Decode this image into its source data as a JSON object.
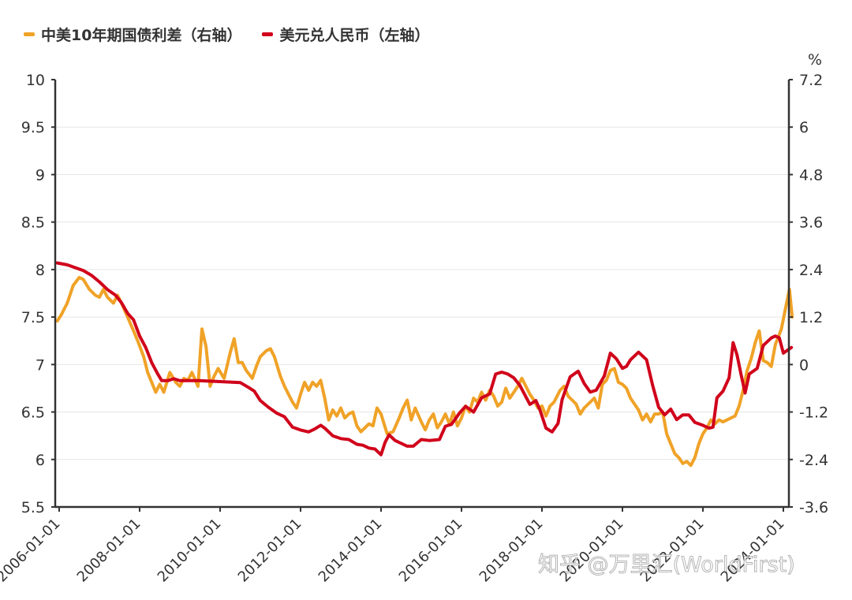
{
  "legend": [
    {
      "label": "中美10年期国债利差（右轴）",
      "color": "#F0A227"
    },
    {
      "label": "美元兑人民币（左轴）",
      "color": "#D0021B"
    }
  ],
  "watermark": "知乎 @万里汇(WorldFirst)",
  "chart_data": {
    "type": "line",
    "title": "",
    "xlabel": "",
    "ylabel_left": "",
    "ylabel_right": "%",
    "x_ticks": [
      "2006-01-01",
      "2008-01-01",
      "2010-01-01",
      "2012-01-01",
      "2014-01-01",
      "2016-01-01",
      "2018-01-01",
      "2020-01-01",
      "2022-01-01",
      "2024-01-01"
    ],
    "y_left_ticks": [
      "10",
      "9.5",
      "9",
      "8.5",
      "8",
      "7.5",
      "7",
      "6.5",
      "6",
      "5.5"
    ],
    "y_left_range": [
      5.5,
      10
    ],
    "y_right_ticks": [
      "7.2",
      "6",
      "4.8",
      "3.6",
      "2.4",
      "1.2",
      "0",
      "-1.2",
      "-2.4",
      "-3.6"
    ],
    "y_right_range": [
      -3.6,
      7.2
    ],
    "x_range": [
      2005.9,
      2024.15
    ],
    "grid": true,
    "legend_position": "top-left",
    "series": [
      {
        "name": "中美10年期国债利差（右轴）",
        "axis": "right",
        "color": "#F0A227",
        "points": [
          [
            2005.95,
            1.1
          ],
          [
            2006.05,
            1.25
          ],
          [
            2006.2,
            1.55
          ],
          [
            2006.35,
            2.0
          ],
          [
            2006.5,
            2.2
          ],
          [
            2006.6,
            2.15
          ],
          [
            2006.75,
            1.9
          ],
          [
            2006.9,
            1.75
          ],
          [
            2007.0,
            1.7
          ],
          [
            2007.1,
            1.9
          ],
          [
            2007.2,
            1.7
          ],
          [
            2007.35,
            1.55
          ],
          [
            2007.45,
            1.75
          ],
          [
            2007.55,
            1.55
          ],
          [
            2007.7,
            1.2
          ],
          [
            2007.85,
            0.85
          ],
          [
            2007.95,
            0.6
          ],
          [
            2008.1,
            0.2
          ],
          [
            2008.2,
            -0.2
          ],
          [
            2008.3,
            -0.45
          ],
          [
            2008.4,
            -0.7
          ],
          [
            2008.5,
            -0.5
          ],
          [
            2008.6,
            -0.7
          ],
          [
            2008.75,
            -0.2
          ],
          [
            2008.9,
            -0.45
          ],
          [
            2009.0,
            -0.55
          ],
          [
            2009.1,
            -0.35
          ],
          [
            2009.2,
            -0.4
          ],
          [
            2009.3,
            -0.2
          ],
          [
            2009.45,
            -0.55
          ],
          [
            2009.55,
            0.9
          ],
          [
            2009.65,
            0.45
          ],
          [
            2009.75,
            -0.55
          ],
          [
            2009.85,
            -0.3
          ],
          [
            2009.95,
            -0.1
          ],
          [
            2010.1,
            -0.35
          ],
          [
            2010.25,
            0.3
          ],
          [
            2010.35,
            0.65
          ],
          [
            2010.45,
            0.05
          ],
          [
            2010.55,
            0.05
          ],
          [
            2010.65,
            -0.15
          ],
          [
            2010.8,
            -0.35
          ],
          [
            2010.9,
            -0.05
          ],
          [
            2011.0,
            0.2
          ],
          [
            2011.15,
            0.35
          ],
          [
            2011.25,
            0.4
          ],
          [
            2011.35,
            0.2
          ],
          [
            2011.5,
            -0.3
          ],
          [
            2011.6,
            -0.55
          ],
          [
            2011.7,
            -0.75
          ],
          [
            2011.8,
            -0.95
          ],
          [
            2011.9,
            -1.1
          ],
          [
            2012.0,
            -0.75
          ],
          [
            2012.1,
            -0.45
          ],
          [
            2012.2,
            -0.65
          ],
          [
            2012.3,
            -0.45
          ],
          [
            2012.4,
            -0.55
          ],
          [
            2012.5,
            -0.4
          ],
          [
            2012.6,
            -0.85
          ],
          [
            2012.7,
            -1.4
          ],
          [
            2012.8,
            -1.15
          ],
          [
            2012.9,
            -1.3
          ],
          [
            2013.0,
            -1.1
          ],
          [
            2013.1,
            -1.35
          ],
          [
            2013.2,
            -1.25
          ],
          [
            2013.3,
            -1.2
          ],
          [
            2013.4,
            -1.55
          ],
          [
            2013.5,
            -1.7
          ],
          [
            2013.6,
            -1.6
          ],
          [
            2013.7,
            -1.5
          ],
          [
            2013.8,
            -1.55
          ],
          [
            2013.9,
            -1.1
          ],
          [
            2014.0,
            -1.25
          ],
          [
            2014.15,
            -1.75
          ],
          [
            2014.3,
            -1.7
          ],
          [
            2014.45,
            -1.35
          ],
          [
            2014.55,
            -1.1
          ],
          [
            2014.65,
            -0.9
          ],
          [
            2014.75,
            -1.4
          ],
          [
            2014.85,
            -1.1
          ],
          [
            2015.0,
            -1.45
          ],
          [
            2015.1,
            -1.65
          ],
          [
            2015.2,
            -1.4
          ],
          [
            2015.3,
            -1.25
          ],
          [
            2015.4,
            -1.6
          ],
          [
            2015.5,
            -1.45
          ],
          [
            2015.6,
            -1.25
          ],
          [
            2015.7,
            -1.5
          ],
          [
            2015.8,
            -1.2
          ],
          [
            2015.9,
            -1.55
          ],
          [
            2016.0,
            -1.35
          ],
          [
            2016.1,
            -1.05
          ],
          [
            2016.2,
            -1.2
          ],
          [
            2016.3,
            -0.85
          ],
          [
            2016.4,
            -0.95
          ],
          [
            2016.5,
            -0.7
          ],
          [
            2016.6,
            -0.9
          ],
          [
            2016.7,
            -0.65
          ],
          [
            2016.8,
            -0.8
          ],
          [
            2016.9,
            -1.05
          ],
          [
            2017.0,
            -0.95
          ],
          [
            2017.1,
            -0.6
          ],
          [
            2017.2,
            -0.85
          ],
          [
            2017.3,
            -0.7
          ],
          [
            2017.4,
            -0.55
          ],
          [
            2017.5,
            -0.35
          ],
          [
            2017.6,
            -0.55
          ],
          [
            2017.7,
            -0.75
          ],
          [
            2017.8,
            -0.9
          ],
          [
            2017.9,
            -1.1
          ],
          [
            2018.0,
            -1.05
          ],
          [
            2018.1,
            -1.3
          ],
          [
            2018.2,
            -1.05
          ],
          [
            2018.3,
            -0.95
          ],
          [
            2018.45,
            -0.65
          ],
          [
            2018.55,
            -0.55
          ],
          [
            2018.65,
            -0.8
          ],
          [
            2018.75,
            -0.9
          ],
          [
            2018.85,
            -1.0
          ],
          [
            2018.95,
            -1.25
          ],
          [
            2019.05,
            -1.1
          ],
          [
            2019.2,
            -0.95
          ],
          [
            2019.3,
            -0.85
          ],
          [
            2019.4,
            -1.1
          ],
          [
            2019.5,
            -0.5
          ],
          [
            2019.6,
            -0.4
          ],
          [
            2019.7,
            -0.15
          ],
          [
            2019.8,
            -0.1
          ],
          [
            2019.9,
            -0.45
          ],
          [
            2020.0,
            -0.5
          ],
          [
            2020.1,
            -0.6
          ],
          [
            2020.2,
            -0.85
          ],
          [
            2020.3,
            -1.0
          ],
          [
            2020.4,
            -1.15
          ],
          [
            2020.5,
            -1.4
          ],
          [
            2020.6,
            -1.25
          ],
          [
            2020.7,
            -1.45
          ],
          [
            2020.8,
            -1.25
          ],
          [
            2020.9,
            -1.25
          ],
          [
            2021.0,
            -1.2
          ],
          [
            2021.1,
            -1.75
          ],
          [
            2021.2,
            -2.0
          ],
          [
            2021.3,
            -2.25
          ],
          [
            2021.4,
            -2.35
          ],
          [
            2021.5,
            -2.5
          ],
          [
            2021.6,
            -2.45
          ],
          [
            2021.7,
            -2.55
          ],
          [
            2021.8,
            -2.35
          ],
          [
            2021.9,
            -2.0
          ],
          [
            2022.0,
            -1.75
          ],
          [
            2022.1,
            -1.6
          ],
          [
            2022.2,
            -1.4
          ],
          [
            2022.3,
            -1.5
          ],
          [
            2022.4,
            -1.4
          ],
          [
            2022.5,
            -1.45
          ],
          [
            2022.6,
            -1.4
          ],
          [
            2022.7,
            -1.35
          ],
          [
            2022.8,
            -1.3
          ],
          [
            2022.9,
            -1.05
          ],
          [
            2023.0,
            -0.65
          ],
          [
            2023.1,
            -0.15
          ],
          [
            2023.2,
            0.15
          ],
          [
            2023.3,
            0.55
          ],
          [
            2023.4,
            0.85
          ],
          [
            2023.5,
            0.1
          ],
          [
            2023.6,
            0.05
          ],
          [
            2023.7,
            -0.05
          ],
          [
            2023.8,
            0.5
          ],
          [
            2023.95,
            0.9
          ],
          [
            2024.05,
            1.4
          ],
          [
            2024.15,
            1.9
          ],
          [
            2024.22,
            1.2
          ]
        ]
      },
      {
        "name": "美元兑人民币（左轴）",
        "axis": "left",
        "color": "#D0021B",
        "points": [
          [
            2005.95,
            8.07
          ],
          [
            2006.2,
            8.05
          ],
          [
            2006.4,
            8.02
          ],
          [
            2006.6,
            7.99
          ],
          [
            2006.8,
            7.94
          ],
          [
            2007.0,
            7.87
          ],
          [
            2007.2,
            7.79
          ],
          [
            2007.4,
            7.73
          ],
          [
            2007.55,
            7.65
          ],
          [
            2007.7,
            7.54
          ],
          [
            2007.85,
            7.47
          ],
          [
            2008.0,
            7.3
          ],
          [
            2008.15,
            7.18
          ],
          [
            2008.3,
            7.02
          ],
          [
            2008.45,
            6.9
          ],
          [
            2008.55,
            6.83
          ],
          [
            2008.7,
            6.83
          ],
          [
            2008.85,
            6.85
          ],
          [
            2009.0,
            6.83
          ],
          [
            2009.5,
            6.83
          ],
          [
            2010.0,
            6.82
          ],
          [
            2010.5,
            6.81
          ],
          [
            2010.7,
            6.76
          ],
          [
            2010.85,
            6.72
          ],
          [
            2011.0,
            6.62
          ],
          [
            2011.2,
            6.55
          ],
          [
            2011.4,
            6.49
          ],
          [
            2011.6,
            6.45
          ],
          [
            2011.8,
            6.34
          ],
          [
            2012.0,
            6.31
          ],
          [
            2012.2,
            6.29
          ],
          [
            2012.35,
            6.32
          ],
          [
            2012.5,
            6.36
          ],
          [
            2012.6,
            6.33
          ],
          [
            2012.8,
            6.25
          ],
          [
            2013.0,
            6.22
          ],
          [
            2013.2,
            6.21
          ],
          [
            2013.4,
            6.16
          ],
          [
            2013.55,
            6.15
          ],
          [
            2013.7,
            6.12
          ],
          [
            2013.85,
            6.11
          ],
          [
            2014.0,
            6.05
          ],
          [
            2014.1,
            6.18
          ],
          [
            2014.2,
            6.26
          ],
          [
            2014.35,
            6.2
          ],
          [
            2014.5,
            6.17
          ],
          [
            2014.65,
            6.14
          ],
          [
            2014.8,
            6.14
          ],
          [
            2015.0,
            6.21
          ],
          [
            2015.2,
            6.2
          ],
          [
            2015.45,
            6.21
          ],
          [
            2015.6,
            6.35
          ],
          [
            2015.75,
            6.37
          ],
          [
            2015.95,
            6.49
          ],
          [
            2016.1,
            6.56
          ],
          [
            2016.3,
            6.5
          ],
          [
            2016.5,
            6.65
          ],
          [
            2016.7,
            6.69
          ],
          [
            2016.85,
            6.9
          ],
          [
            2017.0,
            6.92
          ],
          [
            2017.15,
            6.9
          ],
          [
            2017.3,
            6.86
          ],
          [
            2017.45,
            6.78
          ],
          [
            2017.6,
            6.66
          ],
          [
            2017.7,
            6.58
          ],
          [
            2017.85,
            6.62
          ],
          [
            2017.95,
            6.52
          ],
          [
            2018.1,
            6.33
          ],
          [
            2018.25,
            6.29
          ],
          [
            2018.4,
            6.38
          ],
          [
            2018.5,
            6.63
          ],
          [
            2018.7,
            6.87
          ],
          [
            2018.9,
            6.93
          ],
          [
            2019.05,
            6.8
          ],
          [
            2019.2,
            6.71
          ],
          [
            2019.35,
            6.73
          ],
          [
            2019.55,
            6.88
          ],
          [
            2019.7,
            7.12
          ],
          [
            2019.85,
            7.06
          ],
          [
            2020.0,
            6.96
          ],
          [
            2020.1,
            6.98
          ],
          [
            2020.2,
            7.05
          ],
          [
            2020.4,
            7.13
          ],
          [
            2020.6,
            7.05
          ],
          [
            2020.75,
            6.78
          ],
          [
            2020.9,
            6.55
          ],
          [
            2021.05,
            6.47
          ],
          [
            2021.2,
            6.53
          ],
          [
            2021.35,
            6.42
          ],
          [
            2021.5,
            6.47
          ],
          [
            2021.65,
            6.47
          ],
          [
            2021.8,
            6.39
          ],
          [
            2022.0,
            6.36
          ],
          [
            2022.15,
            6.33
          ],
          [
            2022.25,
            6.34
          ],
          [
            2022.35,
            6.65
          ],
          [
            2022.5,
            6.72
          ],
          [
            2022.65,
            6.86
          ],
          [
            2022.75,
            7.23
          ],
          [
            2022.85,
            7.1
          ],
          [
            2022.95,
            6.89
          ],
          [
            2023.05,
            6.7
          ],
          [
            2023.15,
            6.9
          ],
          [
            2023.35,
            6.96
          ],
          [
            2023.5,
            7.2
          ],
          [
            2023.7,
            7.28
          ],
          [
            2023.8,
            7.3
          ],
          [
            2023.9,
            7.28
          ],
          [
            2024.0,
            7.12
          ],
          [
            2024.1,
            7.15
          ],
          [
            2024.2,
            7.18
          ]
        ]
      }
    ]
  }
}
